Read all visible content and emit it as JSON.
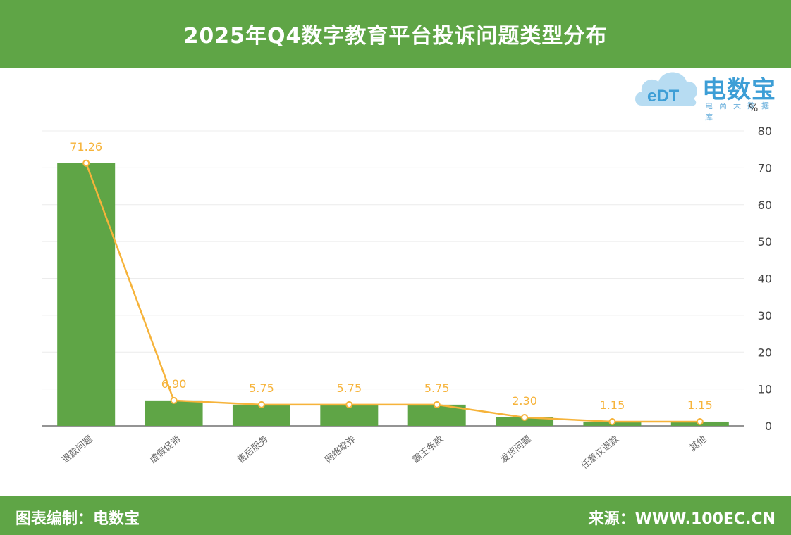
{
  "header": {
    "title": "2025年Q4数字教育平台投诉问题类型分布"
  },
  "footer": {
    "left": "图表编制：电数宝",
    "right": "来源：WWW.100EC.CN"
  },
  "logo": {
    "mark": "eDT",
    "brand": "电数宝",
    "sub": "电商大数据库"
  },
  "colors": {
    "bar": "#5fa546",
    "line": "#f6b33a",
    "label": "#f6b33a",
    "header": "#5fa546"
  },
  "chart_data": {
    "type": "bar",
    "categories": [
      "退款问题",
      "虚假促销",
      "售后服务",
      "网络欺诈",
      "霸王条款",
      "发货问题",
      "任意仅退款",
      "其他"
    ],
    "values": [
      71.26,
      6.9,
      5.75,
      5.75,
      5.75,
      2.3,
      1.15,
      1.15
    ],
    "labels": [
      "71.26",
      "6.90",
      "5.75",
      "5.75",
      "5.75",
      "2.30",
      "1.15",
      "1.15"
    ],
    "overlay_line": true,
    "yunit": "%",
    "ylim": [
      0,
      80
    ],
    "yticks": [
      "0",
      "10",
      "20",
      "30",
      "40",
      "50",
      "60",
      "70",
      "80"
    ],
    "y_axis_position": "right",
    "grid": true
  }
}
